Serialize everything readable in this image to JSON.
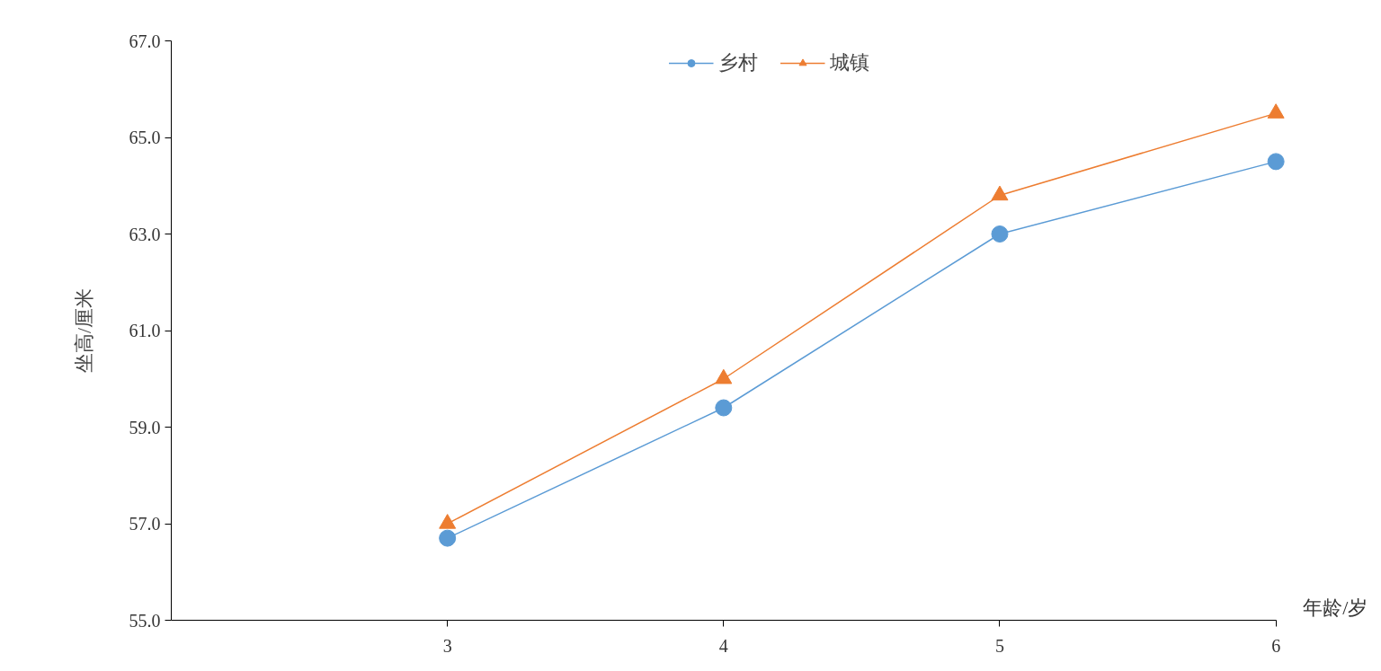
{
  "chart_data": {
    "type": "line",
    "xlabel": "年龄/岁",
    "ylabel": "坐高/厘米",
    "x": [
      3,
      4,
      5,
      6
    ],
    "xlim": [
      2,
      6
    ],
    "xticks": [
      3,
      4,
      5,
      6
    ],
    "ylim": [
      55,
      67
    ],
    "yticks": [
      {
        "value": 55,
        "label": "55.0"
      },
      {
        "value": 57,
        "label": "57.0"
      },
      {
        "value": 59,
        "label": "59.0"
      },
      {
        "value": 61,
        "label": "61.0"
      },
      {
        "value": 63,
        "label": "63.0"
      },
      {
        "value": 65,
        "label": "65.0"
      },
      {
        "value": 67,
        "label": "67.0"
      }
    ],
    "series": [
      {
        "name": "乡村",
        "color": "#5b9bd5",
        "marker": "circle",
        "values": [
          56.7,
          59.4,
          63.0,
          64.5
        ]
      },
      {
        "name": "城镇",
        "color": "#ed7d31",
        "marker": "triangle",
        "values": [
          57.0,
          60.0,
          63.8,
          65.5
        ]
      }
    ],
    "grid": false,
    "legend": "top",
    "line_style": "solid"
  }
}
